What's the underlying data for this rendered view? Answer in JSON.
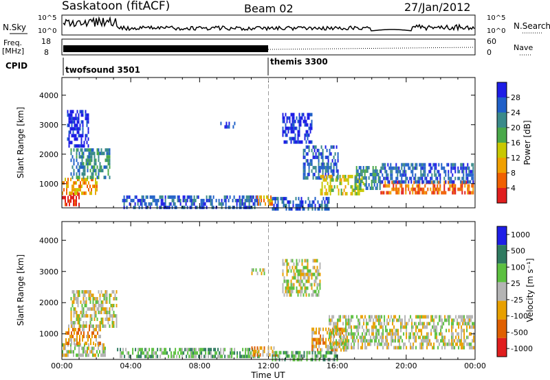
{
  "header": {
    "station": "Saskatoon (fitACF)",
    "beam": "Beam 02",
    "date": "27/Jan/2012"
  },
  "aux_panels": {
    "nsky_label": "N.Sky",
    "nsky_ticks": [
      "10^5",
      "10^0"
    ],
    "nsearch_label": "N.Search",
    "nsearch_ticks": [
      "10^5",
      "10^0"
    ],
    "freq_label": "Freq.",
    "freq_unit": "[MHz]",
    "freq_ticks": [
      "18",
      "8"
    ],
    "nave_label": "Nave",
    "nave_ticks": [
      "60",
      "0"
    ],
    "cpid_label": "CPID",
    "cpid_segments": [
      {
        "name": "twofsound 3501",
        "start_hour": 0
      },
      {
        "name": "themis 3300",
        "start_hour": 12
      }
    ]
  },
  "colors": {
    "power_scale": [
      "#1e1ee6",
      "#2060c8",
      "#3a8a8a",
      "#4aa84a",
      "#c8c800",
      "#f0a000",
      "#f06000",
      "#e01e1e"
    ],
    "velocity_scale": [
      "#1e1ee6",
      "#2f7a60",
      "#5cc040",
      "#b4b4b4",
      "#e8a000",
      "#e06000",
      "#e01e1e"
    ]
  },
  "chart_data": [
    {
      "type": "heatmap",
      "name": "power",
      "ylabel": "Slant Range [km]",
      "colorbar_label": "Power [dB]",
      "colorbar_ticks": [
        "28",
        "24",
        "20",
        "16",
        "12",
        "8",
        "4"
      ],
      "x_ticks": [
        "00:00",
        "04:00",
        "08:00",
        "12:00",
        "16:00",
        "20:00",
        "00:00"
      ],
      "xlim": [
        0,
        24
      ],
      "y_ticks": [
        "4000",
        "3000",
        "2000",
        "1000"
      ],
      "ylim": [
        180,
        4600
      ],
      "regions": [
        {
          "t0": 0.0,
          "t1": 1.0,
          "r0": 300,
          "r1": 700,
          "level": 7
        },
        {
          "t0": 0.0,
          "t1": 2.0,
          "r0": 700,
          "r1": 1200,
          "level": 5
        },
        {
          "t0": 0.5,
          "t1": 2.8,
          "r0": 1200,
          "r1": 2200,
          "level": 2
        },
        {
          "t0": 0.3,
          "t1": 1.5,
          "r0": 2300,
          "r1": 3500,
          "level": 0
        },
        {
          "t0": 3.5,
          "t1": 11.5,
          "r0": 250,
          "r1": 600,
          "level": 1
        },
        {
          "t0": 11.3,
          "t1": 12.2,
          "r0": 300,
          "r1": 600,
          "level": 5
        },
        {
          "t0": 12.2,
          "t1": 15.5,
          "r0": 200,
          "r1": 550,
          "level": 1
        },
        {
          "t0": 12.8,
          "t1": 14.5,
          "r0": 2400,
          "r1": 3400,
          "level": 0
        },
        {
          "t0": 14.0,
          "t1": 16.0,
          "r0": 1200,
          "r1": 2300,
          "level": 1
        },
        {
          "t0": 15.0,
          "t1": 17.5,
          "r0": 700,
          "r1": 1300,
          "level": 4
        },
        {
          "t0": 17.0,
          "t1": 18.5,
          "r0": 800,
          "r1": 1600,
          "level": 2
        },
        {
          "t0": 18.5,
          "t1": 23.9,
          "r0": 700,
          "r1": 1100,
          "level": 6
        },
        {
          "t0": 18.5,
          "t1": 23.9,
          "r0": 1100,
          "r1": 1700,
          "level": 1
        },
        {
          "t0": 9.2,
          "t1": 10.0,
          "r0": 2900,
          "r1": 3100,
          "level": 0
        }
      ]
    },
    {
      "type": "heatmap",
      "name": "velocity",
      "ylabel": "Slant Range [km]",
      "colorbar_label": "Velocity [m s⁻¹]",
      "colorbar_ticks": [
        "1000",
        "500",
        "100",
        "25",
        "-25",
        "-100",
        "-500",
        "-1000"
      ],
      "x_ticks": [
        "00:00",
        "04:00",
        "08:00",
        "12:00",
        "16:00",
        "20:00",
        "00:00"
      ],
      "xlim": [
        0,
        24
      ],
      "xlabel": "Time UT",
      "y_ticks": [
        "4000",
        "3000",
        "2000",
        "1000"
      ],
      "ylim": [
        180,
        4600
      ],
      "regions": [
        {
          "t0": 0.0,
          "t1": 2.5,
          "r0": 300,
          "r1": 700,
          "level": 3
        },
        {
          "t0": 0.2,
          "t1": 2.2,
          "r0": 700,
          "r1": 1300,
          "level": 4
        },
        {
          "t0": 0.5,
          "t1": 3.2,
          "r0": 1300,
          "r1": 2400,
          "level": 3
        },
        {
          "t0": 3.2,
          "t1": 11.5,
          "r0": 250,
          "r1": 550,
          "level": 2
        },
        {
          "t0": 11.0,
          "t1": 12.5,
          "r0": 300,
          "r1": 600,
          "level": 4
        },
        {
          "t0": 12.8,
          "t1": 15.0,
          "r0": 2200,
          "r1": 3400,
          "level": 3
        },
        {
          "t0": 14.5,
          "t1": 16.5,
          "r0": 500,
          "r1": 1200,
          "level": 4
        },
        {
          "t0": 15.5,
          "t1": 23.9,
          "r0": 600,
          "r1": 1600,
          "level": 3
        },
        {
          "t0": 11.0,
          "t1": 12.0,
          "r0": 2900,
          "r1": 3100,
          "level": 3
        },
        {
          "t0": 12.2,
          "t1": 16.0,
          "r0": 200,
          "r1": 450,
          "level": 2
        }
      ]
    }
  ]
}
